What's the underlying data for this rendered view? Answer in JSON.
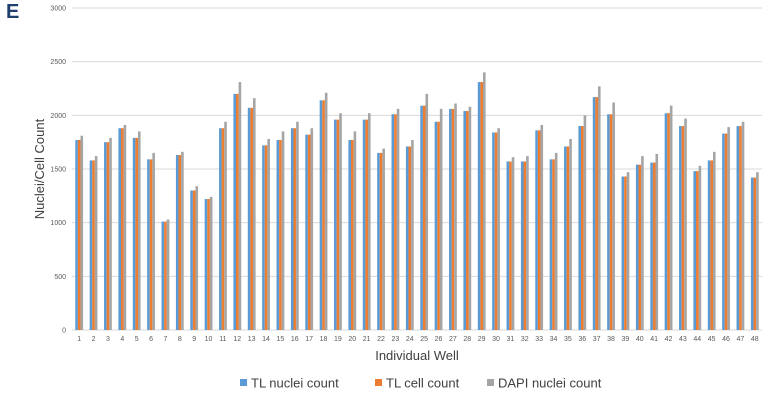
{
  "panel_label": "E",
  "colors": {
    "tl_nuclei": "#5b9bd5",
    "tl_cell": "#ed7d31",
    "dapi": "#a5a5a5",
    "grid": "#d9d9d9"
  },
  "chart_data": {
    "type": "bar",
    "title": "",
    "xlabel": "Individual Well",
    "ylabel": "Nuclei/Cell Count",
    "ylim": [
      0,
      3000
    ],
    "yticks": [
      0,
      500,
      1000,
      1500,
      2000,
      2500,
      3000
    ],
    "grid": true,
    "legend_position": "bottom",
    "categories": [
      "1",
      "2",
      "3",
      "4",
      "5",
      "6",
      "7",
      "8",
      "9",
      "10",
      "11",
      "12",
      "13",
      "14",
      "15",
      "16",
      "17",
      "18",
      "19",
      "20",
      "21",
      "22",
      "23",
      "24",
      "25",
      "26",
      "27",
      "28",
      "29",
      "30",
      "31",
      "32",
      "33",
      "34",
      "35",
      "36",
      "37",
      "38",
      "39",
      "40",
      "41",
      "42",
      "43",
      "44",
      "45",
      "46",
      "47",
      "48"
    ],
    "series": [
      {
        "name": "TL nuclei count",
        "values": [
          1770,
          1580,
          1750,
          1880,
          1790,
          1590,
          1010,
          1630,
          1300,
          1220,
          1880,
          2200,
          2070,
          1720,
          1770,
          1880,
          1820,
          2140,
          1960,
          1770,
          1960,
          1650,
          2010,
          1710,
          2090,
          1940,
          2060,
          2040,
          2310,
          1840,
          1570,
          1570,
          1860,
          1590,
          1710,
          1900,
          2170,
          2010,
          1430,
          1540,
          1560,
          2020,
          1900,
          1480,
          1580,
          1830,
          1900,
          1420
        ]
      },
      {
        "name": "TL cell count",
        "values": [
          1770,
          1580,
          1750,
          1880,
          1790,
          1590,
          1010,
          1630,
          1300,
          1220,
          1880,
          2200,
          2070,
          1720,
          1770,
          1880,
          1820,
          2140,
          1960,
          1770,
          1960,
          1650,
          2010,
          1710,
          2090,
          1940,
          2060,
          2040,
          2310,
          1840,
          1570,
          1570,
          1860,
          1590,
          1710,
          1900,
          2170,
          2010,
          1430,
          1540,
          1560,
          2020,
          1900,
          1480,
          1580,
          1830,
          1900,
          1420
        ]
      },
      {
        "name": "DAPI nuclei count",
        "values": [
          1810,
          1620,
          1790,
          1910,
          1850,
          1650,
          1030,
          1660,
          1340,
          1240,
          1940,
          2310,
          2160,
          1780,
          1850,
          1940,
          1880,
          2210,
          2020,
          1850,
          2020,
          1690,
          2060,
          1770,
          2200,
          2060,
          2110,
          2080,
          2400,
          1880,
          1610,
          1620,
          1910,
          1650,
          1780,
          2000,
          2270,
          2120,
          1470,
          1620,
          1640,
          2090,
          1970,
          1530,
          1660,
          1890,
          1940,
          1470
        ]
      }
    ]
  }
}
